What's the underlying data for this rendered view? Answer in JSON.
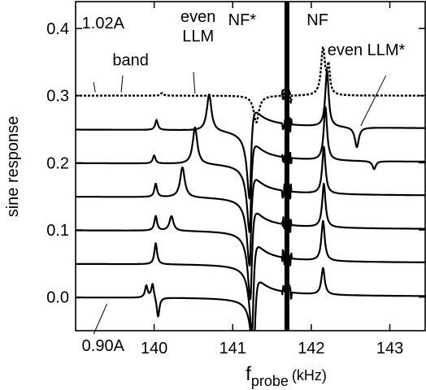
{
  "chart_data": {
    "type": "line",
    "title": "",
    "xlabel": {
      "main": "f",
      "sub": "probe",
      "unit": "(kHz)"
    },
    "ylabel": "sine response",
    "xlim": [
      139.0,
      143.45
    ],
    "ylim": [
      -0.05,
      0.44
    ],
    "x_ticks": [
      140,
      141,
      142,
      143
    ],
    "y_ticks": [
      0.0,
      0.1,
      0.2,
      0.3,
      0.4
    ],
    "x_tick_labels": [
      "140",
      "141",
      "142",
      "143"
    ],
    "y_tick_labels": [
      "0.0",
      "0.1",
      "0.2",
      "0.3",
      "0.4"
    ],
    "grid": false,
    "legend": "none",
    "line_color": "#000000",
    "dashed_top_trace": true,
    "vertical_band_center": 141.69,
    "series": [
      {
        "offset": 0.0,
        "features": [
          {
            "x": 139.9,
            "amp": 0.018,
            "w": 0.02,
            "kind": "lorentz"
          },
          {
            "x": 139.98,
            "amp": 0.022,
            "w": 0.02,
            "kind": "lorentz"
          },
          {
            "x": 140.05,
            "amp": -0.03,
            "w": 0.02,
            "kind": "lorentz"
          },
          {
            "x": 141.27,
            "amp": -0.09,
            "w": 0.035,
            "kind": "disp"
          },
          {
            "x": 142.15,
            "amp": 0.04,
            "w": 0.025,
            "kind": "lorentz"
          }
        ]
      },
      {
        "offset": 0.05,
        "features": [
          {
            "x": 140.02,
            "amp": 0.032,
            "w": 0.02,
            "kind": "lorentz"
          },
          {
            "x": 141.25,
            "amp": -0.1,
            "w": 0.035,
            "kind": "disp"
          },
          {
            "x": 142.15,
            "amp": 0.06,
            "w": 0.025,
            "kind": "lorentz"
          }
        ]
      },
      {
        "offset": 0.1,
        "features": [
          {
            "x": 140.02,
            "amp": 0.022,
            "w": 0.02,
            "kind": "lorentz"
          },
          {
            "x": 140.22,
            "amp": 0.022,
            "w": 0.03,
            "kind": "lorentz"
          },
          {
            "x": 141.23,
            "amp": -0.1,
            "w": 0.035,
            "kind": "disp"
          },
          {
            "x": 142.16,
            "amp": 0.065,
            "w": 0.025,
            "kind": "lorentz"
          }
        ]
      },
      {
        "offset": 0.15,
        "features": [
          {
            "x": 140.02,
            "amp": 0.02,
            "w": 0.02,
            "kind": "lorentz"
          },
          {
            "x": 140.36,
            "amp": 0.045,
            "w": 0.035,
            "kind": "lorentz"
          },
          {
            "x": 141.22,
            "amp": -0.1,
            "w": 0.035,
            "kind": "disp"
          },
          {
            "x": 142.16,
            "amp": 0.07,
            "w": 0.025,
            "kind": "lorentz"
          }
        ]
      },
      {
        "offset": 0.2,
        "features": [
          {
            "x": 140.0,
            "amp": 0.012,
            "w": 0.02,
            "kind": "lorentz"
          },
          {
            "x": 140.52,
            "amp": 0.055,
            "w": 0.035,
            "kind": "lorentz"
          },
          {
            "x": 141.22,
            "amp": -0.1,
            "w": 0.035,
            "kind": "disp"
          },
          {
            "x": 142.18,
            "amp": 0.08,
            "w": 0.025,
            "kind": "lorentz"
          },
          {
            "x": 142.8,
            "amp": -0.012,
            "w": 0.025,
            "kind": "lorentz"
          }
        ]
      },
      {
        "offset": 0.25,
        "features": [
          {
            "x": 140.03,
            "amp": 0.015,
            "w": 0.02,
            "kind": "lorentz"
          },
          {
            "x": 140.7,
            "amp": 0.055,
            "w": 0.035,
            "kind": "lorentz"
          },
          {
            "x": 141.22,
            "amp": -0.1,
            "w": 0.035,
            "kind": "disp"
          },
          {
            "x": 142.2,
            "amp": 0.085,
            "w": 0.025,
            "kind": "lorentz"
          },
          {
            "x": 142.58,
            "amp": -0.03,
            "w": 0.03,
            "kind": "lorentz"
          }
        ]
      },
      {
        "offset": 0.3,
        "dashed": true,
        "features": [
          {
            "x": 140.1,
            "amp": 0.004,
            "w": 0.02,
            "kind": "lorentz"
          },
          {
            "x": 141.3,
            "amp": -0.04,
            "w": 0.04,
            "kind": "lorentz"
          },
          {
            "x": 142.15,
            "amp": 0.07,
            "w": 0.03,
            "kind": "lorentz"
          },
          {
            "x": 142.22,
            "amp": 0.04,
            "w": 0.02,
            "kind": "lorentz"
          }
        ]
      }
    ],
    "annotations": [
      {
        "text": "1.02A",
        "x": 139.35,
        "y": 0.4,
        "ax": 139.23,
        "ay": 0.32,
        "bx": 139.25,
        "by": 0.305
      },
      {
        "text": "band",
        "x": 139.7,
        "y": 0.345,
        "ax": 139.6,
        "ay": 0.33,
        "bx": 139.58,
        "by": 0.305
      },
      {
        "text": "even",
        "x": 140.56,
        "y": 0.41,
        "line2": "LLM",
        "ax": 140.5,
        "ay": 0.335,
        "bx": 140.52,
        "by": 0.303
      },
      {
        "text": "NF*",
        "x": 141.12,
        "y": 0.405
      },
      {
        "text": "NF",
        "x": 142.08,
        "y": 0.405
      },
      {
        "text": "even LLM*",
        "x": 142.7,
        "y": 0.36,
        "ax": 142.95,
        "ay": 0.33,
        "bx": 142.63,
        "by": 0.255
      },
      {
        "text": "0.90A",
        "x": 139.35,
        "y": -0.08,
        "ax": 139.23,
        "ay": -0.055,
        "bx": 139.4,
        "by": -0.01
      }
    ]
  }
}
